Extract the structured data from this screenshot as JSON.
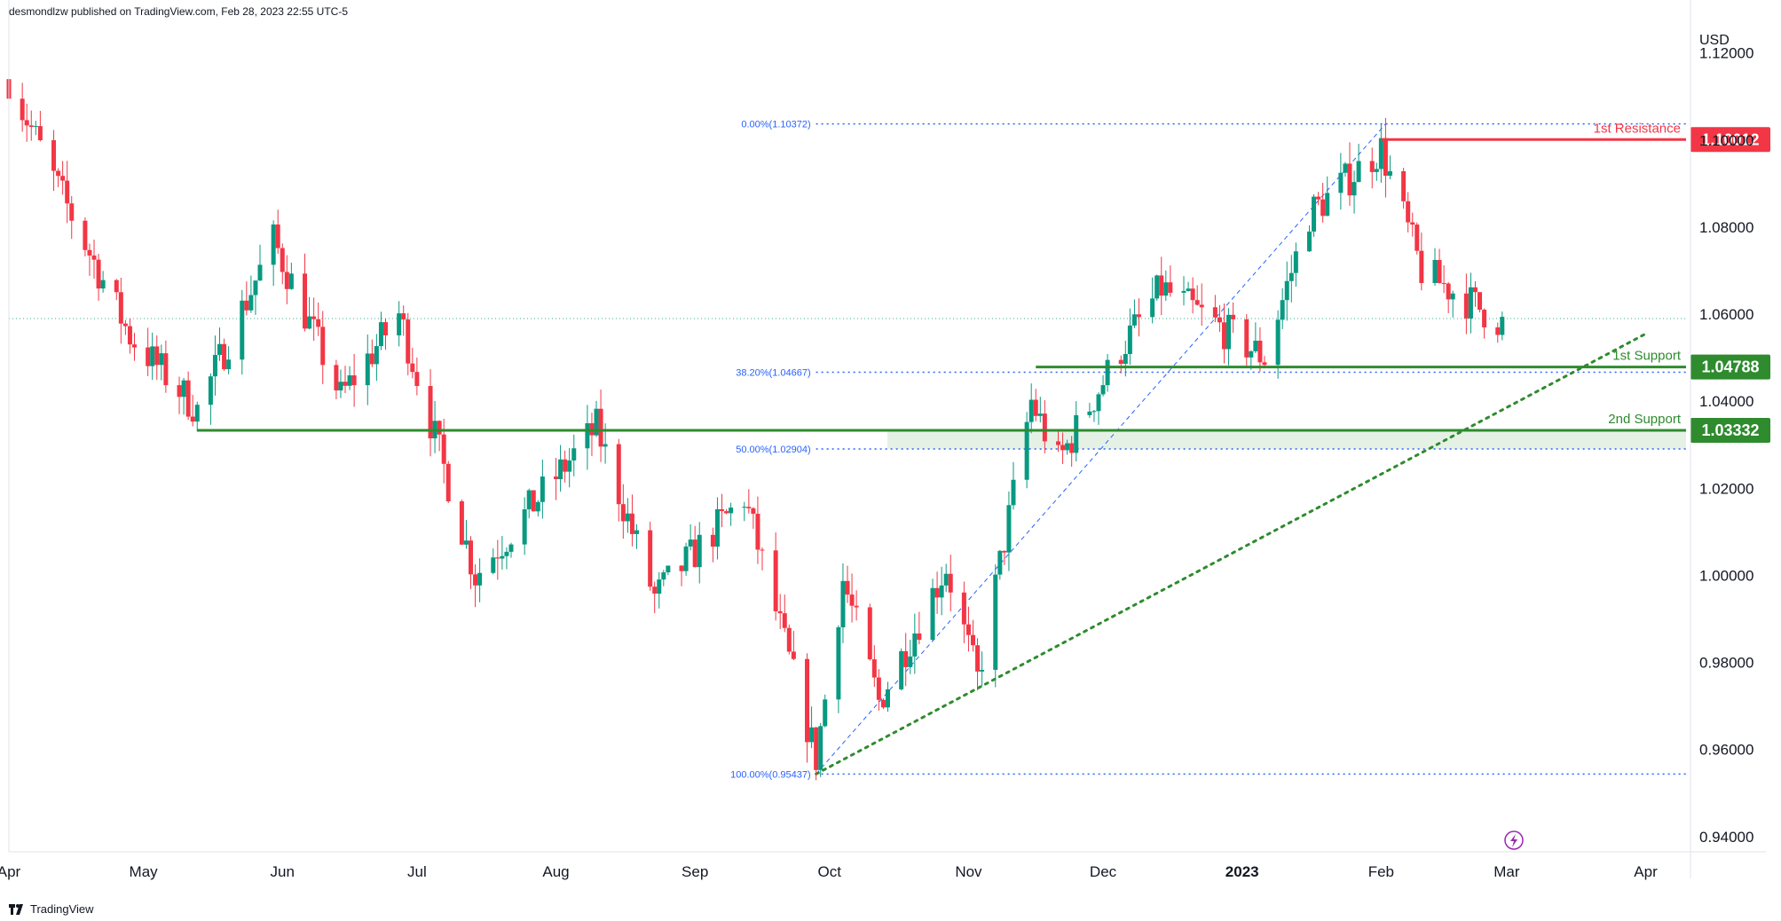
{
  "header": {
    "attribution": "desmondlzw published on TradingView.com, Feb 28, 2023 22:55 UTC-5"
  },
  "footer": {
    "brand": "TradingView",
    "logo_icon": "tradingview-logo-icon"
  },
  "colors": {
    "up": "#089981",
    "down": "#f23645",
    "support": "#2e8b2e",
    "resistance": "#f23645",
    "fib": "#2962ff"
  },
  "chart_data": {
    "type": "candlestick",
    "currency": "USD",
    "y_ticks": [
      "1.12000",
      "1.10000",
      "1.08000",
      "1.06000",
      "1.04000",
      "1.02000",
      "1.00000",
      "0.98000",
      "0.96000",
      "0.94000"
    ],
    "ylim": [
      0.9365,
      1.1281
    ],
    "x_ticks": [
      {
        "label": "Apr",
        "date": "2022-04-01"
      },
      {
        "label": "May",
        "date": "2022-05-01"
      },
      {
        "label": "Jun",
        "date": "2022-06-01"
      },
      {
        "label": "Jul",
        "date": "2022-07-01"
      },
      {
        "label": "Aug",
        "date": "2022-08-01"
      },
      {
        "label": "Sep",
        "date": "2022-09-01"
      },
      {
        "label": "Oct",
        "date": "2022-10-01"
      },
      {
        "label": "Nov",
        "date": "2022-11-01"
      },
      {
        "label": "Dec",
        "date": "2022-12-01"
      },
      {
        "label": "2023",
        "date": "2023-01-01"
      },
      {
        "label": "Feb",
        "date": "2023-02-01"
      },
      {
        "label": "Mar",
        "date": "2023-03-01"
      },
      {
        "label": "Apr",
        "date": "2023-04-01"
      }
    ],
    "xlim": [
      "2022-04-01",
      "2023-04-10"
    ],
    "last_price": 1.059,
    "levels": [
      {
        "label": "1st Resistance",
        "value": 1.10012,
        "tag": "1.10012",
        "color": "#f23645",
        "start": "2023-02-01"
      },
      {
        "label": "1st Support",
        "value": 1.04788,
        "tag": "1.04788",
        "color": "#2e8b2e",
        "start": "2022-11-16"
      },
      {
        "label": "2nd Support",
        "value": 1.03332,
        "tag": "1.03332",
        "color": "#2e8b2e",
        "start": "2022-05-13"
      }
    ],
    "fib_levels": [
      {
        "label": "0.00%(1.10372)",
        "value": 1.10372
      },
      {
        "label": "38.20%(1.04667)",
        "value": 1.04667
      },
      {
        "label": "50.00%(1.02904)",
        "value": 1.02904
      },
      {
        "label": "100.00%(0.95437)",
        "value": 0.95437
      }
    ],
    "fib_zone": [
      1.02904,
      1.03332
    ],
    "fib_start": "2022-09-28",
    "fib_diagonal": [
      {
        "date": "2022-09-28",
        "value": 0.95437
      },
      {
        "date": "2023-02-02",
        "value": 1.10372
      }
    ],
    "trendline": [
      {
        "date": "2022-09-28",
        "value": 0.95437
      },
      {
        "date": "2023-04-01",
        "value": 1.0555
      }
    ],
    "anchors": [
      {
        "date": "2022-04-01",
        "value": 1.114
      },
      {
        "date": "2022-04-12",
        "value": 1.089
      },
      {
        "date": "2022-04-28",
        "value": 1.055
      },
      {
        "date": "2022-05-13",
        "value": 1.038
      },
      {
        "date": "2022-05-30",
        "value": 1.077
      },
      {
        "date": "2022-06-14",
        "value": 1.041
      },
      {
        "date": "2022-06-27",
        "value": 1.06
      },
      {
        "date": "2022-07-14",
        "value": 1.0
      },
      {
        "date": "2022-08-10",
        "value": 1.034
      },
      {
        "date": "2022-08-23",
        "value": 0.995
      },
      {
        "date": "2022-09-12",
        "value": 1.018
      },
      {
        "date": "2022-09-28",
        "value": 0.958
      },
      {
        "date": "2022-10-04",
        "value": 0.999
      },
      {
        "date": "2022-10-12",
        "value": 0.971
      },
      {
        "date": "2022-10-27",
        "value": 1.002
      },
      {
        "date": "2022-11-03",
        "value": 0.976
      },
      {
        "date": "2022-11-15",
        "value": 1.04
      },
      {
        "date": "2022-11-21",
        "value": 1.026
      },
      {
        "date": "2022-12-05",
        "value": 1.052
      },
      {
        "date": "2022-12-14",
        "value": 1.066
      },
      {
        "date": "2023-01-06",
        "value": 1.05
      },
      {
        "date": "2023-01-16",
        "value": 1.083
      },
      {
        "date": "2023-02-01",
        "value": 1.098
      },
      {
        "date": "2023-02-10",
        "value": 1.07
      },
      {
        "date": "2023-02-28",
        "value": 1.058
      }
    ]
  }
}
